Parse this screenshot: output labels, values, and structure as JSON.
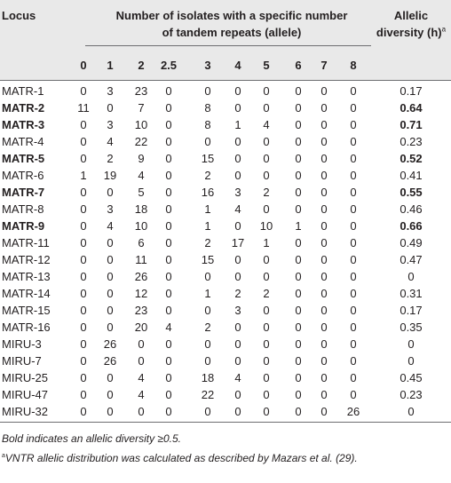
{
  "header": {
    "locus": "Locus",
    "group_line1": "Number of isolates with a specific number",
    "group_line2": "of tandem repeats (allele)",
    "allelic_line1": "Allelic",
    "allelic_line2": "diversity (h)",
    "allelic_sup": "a"
  },
  "columns": [
    "0",
    "1",
    "2",
    "2.5",
    "3",
    "4",
    "5",
    "6",
    "7",
    "8"
  ],
  "rows": [
    {
      "locus": "MATR-1",
      "bold": false,
      "values": [
        "0",
        "3",
        "23",
        "0",
        "0",
        "0",
        "0",
        "0",
        "0",
        "0"
      ],
      "diversity": "0.17"
    },
    {
      "locus": "MATR-2",
      "bold": true,
      "values": [
        "11",
        "0",
        "7",
        "0",
        "8",
        "0",
        "0",
        "0",
        "0",
        "0"
      ],
      "diversity": "0.64"
    },
    {
      "locus": "MATR-3",
      "bold": true,
      "values": [
        "0",
        "3",
        "10",
        "0",
        "8",
        "1",
        "4",
        "0",
        "0",
        "0"
      ],
      "diversity": "0.71"
    },
    {
      "locus": "MATR-4",
      "bold": false,
      "values": [
        "0",
        "4",
        "22",
        "0",
        "0",
        "0",
        "0",
        "0",
        "0",
        "0"
      ],
      "diversity": "0.23"
    },
    {
      "locus": "MATR-5",
      "bold": true,
      "values": [
        "0",
        "2",
        "9",
        "0",
        "15",
        "0",
        "0",
        "0",
        "0",
        "0"
      ],
      "diversity": "0.52"
    },
    {
      "locus": "MATR-6",
      "bold": false,
      "values": [
        "1",
        "19",
        "4",
        "0",
        "2",
        "0",
        "0",
        "0",
        "0",
        "0"
      ],
      "diversity": "0.41"
    },
    {
      "locus": "MATR-7",
      "bold": true,
      "values": [
        "0",
        "0",
        "5",
        "0",
        "16",
        "3",
        "2",
        "0",
        "0",
        "0"
      ],
      "diversity": "0.55"
    },
    {
      "locus": "MATR-8",
      "bold": false,
      "values": [
        "0",
        "3",
        "18",
        "0",
        "1",
        "4",
        "0",
        "0",
        "0",
        "0"
      ],
      "diversity": "0.46"
    },
    {
      "locus": "MATR-9",
      "bold": true,
      "values": [
        "0",
        "4",
        "10",
        "0",
        "1",
        "0",
        "10",
        "1",
        "0",
        "0"
      ],
      "diversity": "0.66"
    },
    {
      "locus": "MATR-11",
      "bold": false,
      "values": [
        "0",
        "0",
        "6",
        "0",
        "2",
        "17",
        "1",
        "0",
        "0",
        "0"
      ],
      "diversity": "0.49"
    },
    {
      "locus": "MATR-12",
      "bold": false,
      "values": [
        "0",
        "0",
        "11",
        "0",
        "15",
        "0",
        "0",
        "0",
        "0",
        "0"
      ],
      "diversity": "0.47"
    },
    {
      "locus": "MATR-13",
      "bold": false,
      "values": [
        "0",
        "0",
        "26",
        "0",
        "0",
        "0",
        "0",
        "0",
        "0",
        "0"
      ],
      "diversity": "0"
    },
    {
      "locus": "MATR-14",
      "bold": false,
      "values": [
        "0",
        "0",
        "12",
        "0",
        "1",
        "2",
        "2",
        "0",
        "0",
        "0"
      ],
      "diversity": "0.31"
    },
    {
      "locus": "MATR-15",
      "bold": false,
      "values": [
        "0",
        "0",
        "23",
        "0",
        "0",
        "3",
        "0",
        "0",
        "0",
        "0"
      ],
      "diversity": "0.17"
    },
    {
      "locus": "MATR-16",
      "bold": false,
      "values": [
        "0",
        "0",
        "20",
        "4",
        "2",
        "0",
        "0",
        "0",
        "0",
        "0"
      ],
      "diversity": "0.35"
    },
    {
      "locus": "MIRU-3",
      "bold": false,
      "values": [
        "0",
        "26",
        "0",
        "0",
        "0",
        "0",
        "0",
        "0",
        "0",
        "0"
      ],
      "diversity": "0"
    },
    {
      "locus": "MIRU-7",
      "bold": false,
      "values": [
        "0",
        "26",
        "0",
        "0",
        "0",
        "0",
        "0",
        "0",
        "0",
        "0"
      ],
      "diversity": "0"
    },
    {
      "locus": "MIRU-25",
      "bold": false,
      "values": [
        "0",
        "0",
        "4",
        "0",
        "18",
        "4",
        "0",
        "0",
        "0",
        "0"
      ],
      "diversity": "0.45"
    },
    {
      "locus": "MIRU-47",
      "bold": false,
      "values": [
        "0",
        "0",
        "4",
        "0",
        "22",
        "0",
        "0",
        "0",
        "0",
        "0"
      ],
      "diversity": "0.23"
    },
    {
      "locus": "MIRU-32",
      "bold": false,
      "values": [
        "0",
        "0",
        "0",
        "0",
        "0",
        "0",
        "0",
        "0",
        "0",
        "26"
      ],
      "diversity": "0"
    }
  ],
  "footnotes": {
    "bold_note": "Bold indicates an allelic diversity ≥0.5.",
    "vntr_sup": "a",
    "vntr_note": "VNTR allelic distribution was calculated as described by Mazars et al. (29)."
  },
  "colors": {
    "header_bg": "#e9e9e9",
    "text": "#231f20",
    "rule": "#6d6e71"
  }
}
